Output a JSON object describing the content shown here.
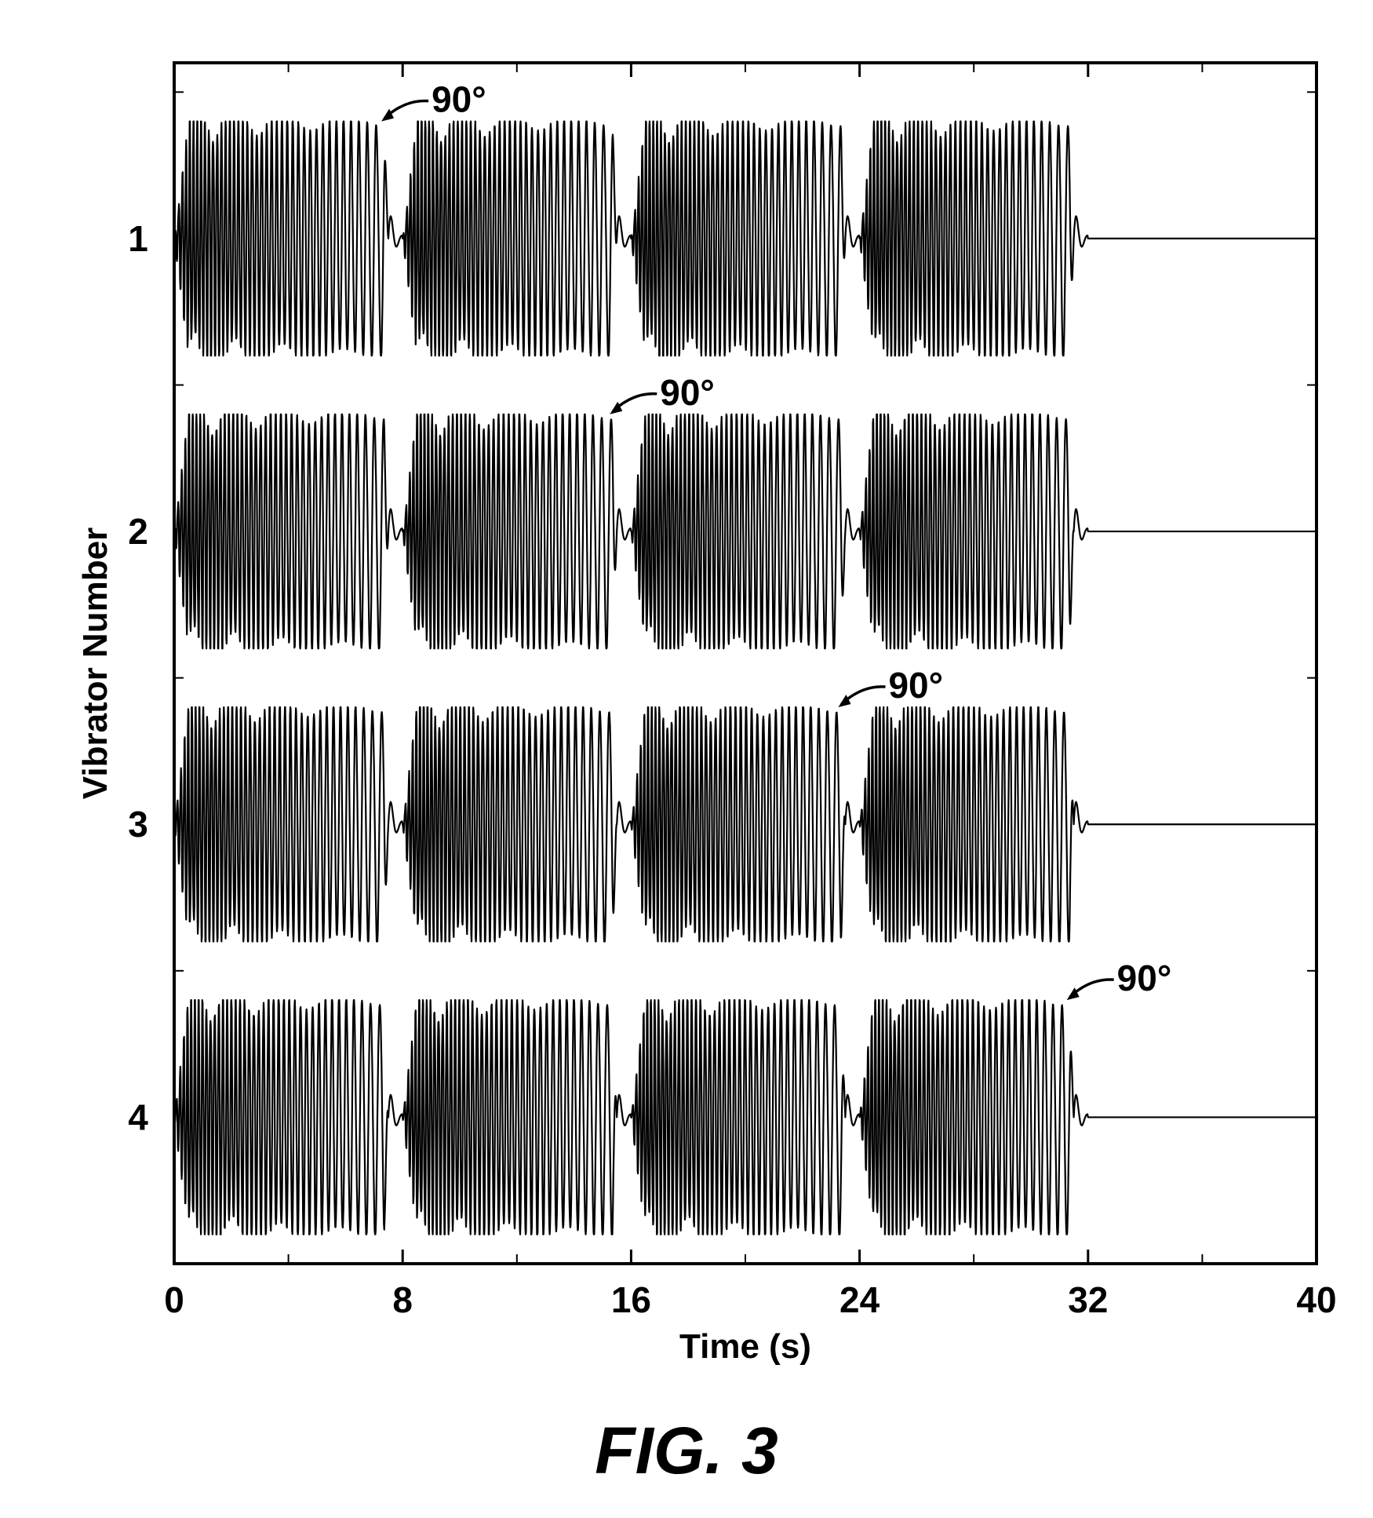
{
  "chart_data": {
    "type": "line",
    "title": "",
    "xlabel": "Time (s)",
    "ylabel": "Vibrator Number",
    "xlim": [
      0,
      40
    ],
    "x_ticks": [
      0,
      8,
      16,
      24,
      32,
      40
    ],
    "categories": [
      "1",
      "2",
      "3",
      "4"
    ],
    "grid": false,
    "sweep_segments": [
      {
        "start": 0,
        "end": 7.5
      },
      {
        "start": 8,
        "end": 15.5
      },
      {
        "start": 16,
        "end": 23.5
      },
      {
        "start": 24,
        "end": 31.5
      }
    ],
    "signal_end": 32,
    "series": [
      {
        "name": "1",
        "annotation": "90°",
        "annotated_sweep": 1
      },
      {
        "name": "2",
        "annotation": "90°",
        "annotated_sweep": 2
      },
      {
        "name": "3",
        "annotation": "90°",
        "annotated_sweep": 3
      },
      {
        "name": "4",
        "annotation": "90°",
        "annotated_sweep": 4
      }
    ],
    "line_color": "#000000"
  },
  "caption": "FIG. 3"
}
